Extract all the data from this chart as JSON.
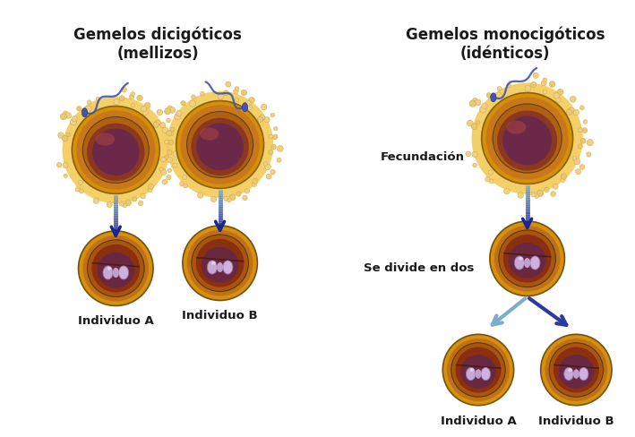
{
  "title_left": "Gemelos dicigóticos\n(mellizos)",
  "title_right": "Gemelos monocigóticos\n(idénticos)",
  "label_individuo_a": "Individuo A",
  "label_individuo_b": "Individuo B",
  "label_fecundacion": "Fecundación",
  "label_divide": "Se divide en dos",
  "bg_color": "#ffffff",
  "zona_color": "#F2C050",
  "zona_dot_color": "#F0D090",
  "egg_outer_color": "#D4900A",
  "egg_mid_color": "#C07818",
  "egg_inner_color": "#A05010",
  "egg_core_color": "#6B2050",
  "egg_cytoplasm": "#C06820",
  "sperm_head_color": "#3D4FA0",
  "sperm_tail_color": "#4455AA",
  "arrow_dark": "#2B3A9E",
  "arrow_light": "#7AADCE",
  "chrom_color": "#C8A8D8",
  "chrom_edge": "#9070B0",
  "title_fontsize": 12,
  "label_fontsize": 9.5,
  "fec_fontsize": 9.5
}
